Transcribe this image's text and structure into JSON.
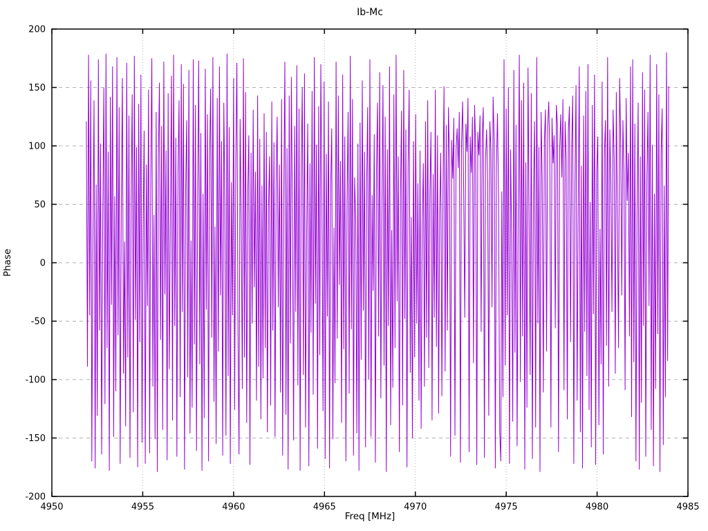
{
  "figure": {
    "background": "#ffffff"
  },
  "chart_data": {
    "type": "line",
    "title": "Ib-Mc",
    "xlabel": "Freq [MHz]",
    "ylabel": "Phase",
    "xlim": [
      4950,
      4985
    ],
    "ylim": [
      -200,
      200
    ],
    "xticks": [
      4950,
      4955,
      4960,
      4965,
      4970,
      4975,
      4980,
      4985
    ],
    "yticks": [
      -200,
      -150,
      -100,
      -50,
      0,
      50,
      100,
      150,
      200
    ],
    "grid": true,
    "legend": false,
    "line_color": "#9400d3",
    "grid_color": "#b0b0b0",
    "border_color": "#000000",
    "series": [
      {
        "name": "phase",
        "x_start": 4951.9,
        "x_step": 0.06,
        "values": [
          121,
          -89,
          178,
          -45,
          156,
          -170,
          23,
          139,
          -176,
          67,
          -131,
          174,
          -58,
          102,
          -164,
          38,
          150,
          -121,
          179,
          -73,
          95,
          -178,
          142,
          -36,
          168,
          -149,
          57,
          -110,
          176,
          -62,
          133,
          -172,
          44,
          158,
          -95,
          18,
          -140,
          171,
          -81,
          126,
          -167,
          52,
          144,
          -128,
          177,
          -49,
          99,
          -175,
          136,
          -68,
          161,
          -154,
          29,
          113,
          -172,
          84,
          -37,
          148,
          -163,
          71,
          175,
          -106,
          41,
          -151,
          129,
          -179,
          88,
          154,
          -66,
          117,
          -143,
          172,
          -27,
          96,
          -169,
          145,
          -91,
          33,
          160,
          -135,
          178,
          -54,
          107,
          -166,
          76,
          139,
          -115,
          170,
          -42,
          153,
          -177,
          63,
          122,
          -98,
          165,
          -146,
          19,
          -124,
          174,
          -70,
          135,
          -161,
          48,
          173,
          -87,
          111,
          -178,
          59,
          -133,
          166,
          -40,
          127,
          -170,
          92,
          149,
          -64,
          176,
          -119,
          31,
          -155,
          141,
          -76,
          168,
          -28,
          104,
          -165,
          137,
          53,
          -148,
          179,
          -97,
          116,
          -172,
          69,
          -45,
          158,
          -126,
          86,
          171,
          -59,
          -164,
          123,
          37,
          -108,
          175,
          -81,
          146,
          -137,
          62,
          109,
          -173,
          94,
          -52,
          131,
          -21,
          78,
          -118,
          143,
          -89,
          106,
          -134,
          66,
          -99,
          128,
          -73,
          112,
          -145,
          47,
          91,
          -122,
          138,
          -58,
          103,
          -149,
          72,
          125,
          -38,
          84,
          -111,
          140,
          -165,
          55,
          172,
          -130,
          98,
          -177,
          143,
          -69,
          159,
          34,
          -152,
          117,
          -42,
          169,
          -105,
          132,
          -178,
          77,
          150,
          -96,
          162,
          -141,
          26,
          119,
          -174,
          85,
          -60,
          147,
          -113,
          176,
          -35,
          101,
          -159,
          134,
          -79,
          170,
          49,
          -127,
          155,
          -168,
          93,
          -46,
          138,
          -176,
          64,
          115,
          -151,
          30,
          -103,
          172,
          -65,
          143,
          -19,
          87,
          -137,
          161,
          -74,
          108,
          -170,
          51,
          129,
          -112,
          177,
          -57,
          140,
          -165,
          73,
          36,
          -146,
          102,
          -178,
          120,
          -83,
          156,
          -41,
          95,
          -158,
          68,
          133,
          -100,
          174,
          -149,
          58,
          -24,
          110,
          -171,
          80,
          137,
          -63,
          163,
          -116,
          42,
          152,
          -88,
          125,
          -179,
          97,
          -54,
          168,
          -139,
          28,
          -107,
          144,
          -73,
          178,
          -33,
          91,
          -162,
          56,
          130,
          -122,
          165,
          -48,
          114,
          -175,
          82,
          148,
          -94,
          39,
          -150,
          104,
          -81,
          127,
          -52,
          68,
          -118,
          96,
          -142,
          34,
          85,
          -106,
          121,
          -64,
          139,
          -90,
          57,
          112,
          -135,
          76,
          -47,
          148,
          -72,
          109,
          -129,
          43,
          94,
          -114,
          63,
          151,
          -93,
          118,
          -58,
          133,
          88,
          -166,
          105,
          72,
          124,
          -148,
          97,
          115,
          81,
          129,
          -171,
          102,
          138,
          64,
          -47,
          119,
          95,
          141,
          -162,
          108,
          77,
          125,
          -86,
          135,
          98,
          -173,
          112,
          92,
          126,
          -59,
          107,
          133,
          -167,
          88,
          114,
          69,
          -131,
          121,
          96,
          -38,
          142,
          104,
          -176,
          79,
          128,
          53,
          -144,
          -170,
          61,
          -115,
          174,
          -88,
          132,
          -45,
          150,
          -172,
          97,
          23,
          -136,
          165,
          -77,
          118,
          -157,
          42,
          178,
          -102,
          139,
          -63,
          154,
          -177,
          86,
          -124,
          167,
          35,
          -96,
          145,
          -168,
          58,
          121,
          -141,
          176,
          -52,
          99,
          -179,
          129,
          71,
          -111,
          103,
          131,
          -76,
          117,
          138,
          92,
          -141,
          124,
          85,
          109,
          -56,
          135,
          118,
          -162,
          96,
          127,
          73,
          140,
          -109,
          121,
          88,
          -134,
          112,
          134,
          -68,
          99,
          143,
          -172,
          64,
          152,
          -118,
          39,
          168,
          -145,
          83,
          -176,
          126,
          -59,
          147,
          -97,
          170,
          -126,
          52,
          -158,
          135,
          -44,
          161,
          -173,
          78,
          108,
          -139,
          29,
          -87,
          155,
          -164,
          93,
          122,
          -71,
          176,
          -106,
          114,
          67,
          -42,
          131,
          89,
          -95,
          146,
          38,
          -73,
          158,
          104,
          -28,
          122,
          76,
          -109,
          141,
          53,
          94,
          -63,
          168,
          -132,
          174,
          -85,
          119,
          -170,
          46,
          137,
          -177,
          91,
          -120,
          163,
          -54,
          148,
          -166,
          72,
          129,
          -37,
          178,
          -143,
          101,
          -174,
          59,
          -108,
          170,
          -61,
          144,
          -179,
          93,
          132,
          -156,
          66,
          -115,
          180,
          -84,
          151
        ]
      }
    ]
  }
}
